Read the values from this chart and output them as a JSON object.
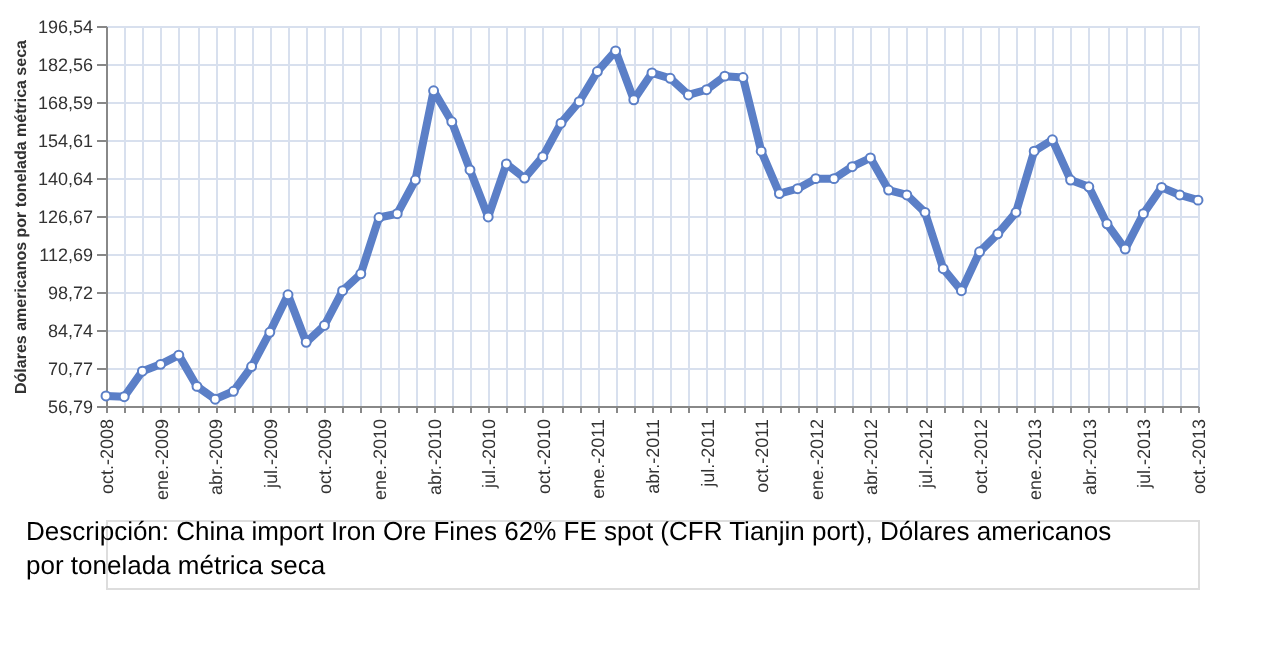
{
  "chart_data": {
    "type": "line",
    "ylabel": "Dólares americanos por tonelada métrica seca",
    "categories": [
      "oct.-2008",
      null,
      null,
      "ene.-2009",
      null,
      null,
      "abr.-2009",
      null,
      null,
      "jul.-2009",
      null,
      null,
      "oct.-2009",
      null,
      null,
      "ene.-2010",
      null,
      null,
      "abr.-2010",
      null,
      null,
      "jul.-2010",
      null,
      null,
      "oct.-2010",
      null,
      null,
      "ene.-2011",
      null,
      null,
      "abr.-2011",
      null,
      null,
      "jul.-2011",
      null,
      null,
      "oct.-2011",
      null,
      null,
      "ene.-2012",
      null,
      null,
      "abr.-2012",
      null,
      null,
      "jul.-2012",
      null,
      null,
      "oct.-2012",
      null,
      null,
      "ene.-2013",
      null,
      null,
      "abr.-2013",
      null,
      null,
      "jul.-2013",
      null,
      null,
      "oct.-2013"
    ],
    "series": [
      {
        "color": "#5b7fc7",
        "values": [
          60.5,
          60.2,
          69.6,
          72.1,
          75.5,
          64.0,
          59.3,
          62.2,
          71.3,
          83.9,
          97.7,
          80.2,
          86.4,
          99.2,
          105.4,
          126.1,
          127.5,
          139.9,
          172.7,
          161.3,
          143.6,
          126.3,
          145.8,
          140.6,
          148.5,
          160.8,
          168.7,
          179.8,
          187.4,
          169.4,
          179.3,
          177.3,
          171.2,
          173.1,
          178.1,
          177.6,
          150.5,
          134.9,
          136.7,
          140.4,
          140.4,
          144.8,
          148.0,
          136.2,
          134.4,
          128.0,
          107.3,
          99.2,
          113.5,
          120.1,
          128.0,
          150.5,
          154.7,
          139.9,
          137.4,
          123.8,
          114.5,
          127.5,
          137.2,
          134.4,
          132.5
        ]
      }
    ],
    "ylim": [
      56.79,
      196.54
    ],
    "yticks": [
      {
        "value": 56.79,
        "label": "56,79"
      },
      {
        "value": 70.77,
        "label": "70,77"
      },
      {
        "value": 84.74,
        "label": "84,74"
      },
      {
        "value": 98.72,
        "label": "98,72"
      },
      {
        "value": 112.69,
        "label": "112,69"
      },
      {
        "value": 126.67,
        "label": "126,67"
      },
      {
        "value": 140.64,
        "label": "140,64"
      },
      {
        "value": 154.61,
        "label": "154,61"
      },
      {
        "value": 168.59,
        "label": "168,59"
      },
      {
        "value": 182.56,
        "label": "182,56"
      },
      {
        "value": 196.54,
        "label": "196,54"
      }
    ],
    "grid": true,
    "marker": "circle",
    "line_style": "solid",
    "annotations": [
      "Descripción: China import Iron Ore Fines 62% FE spot (CFR Tianjin port), Dólares americanos por tonelada métrica seca"
    ]
  }
}
